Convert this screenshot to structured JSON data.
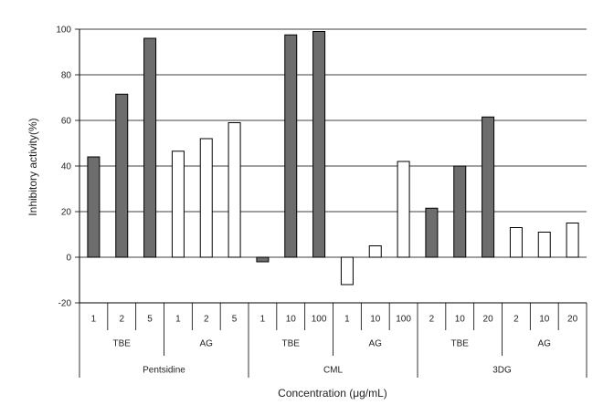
{
  "chart_data": {
    "type": "bar",
    "ylabel": "Inhibitory activity(%)",
    "xlabel": "Concentration (μg/mL)",
    "ylim": [
      -20,
      100
    ],
    "yticks": [
      -20,
      0,
      20,
      40,
      60,
      80,
      100
    ],
    "grid": true,
    "bars": [
      {
        "concentration": "1",
        "group": "TBE",
        "compound": "Pentsidine",
        "value": 44,
        "fill": "dark"
      },
      {
        "concentration": "2",
        "group": "TBE",
        "compound": "Pentsidine",
        "value": 71.5,
        "fill": "dark"
      },
      {
        "concentration": "5",
        "group": "TBE",
        "compound": "Pentsidine",
        "value": 96,
        "fill": "dark"
      },
      {
        "concentration": "1",
        "group": "AG",
        "compound": "Pentsidine",
        "value": 46.5,
        "fill": "white"
      },
      {
        "concentration": "2",
        "group": "AG",
        "compound": "Pentsidine",
        "value": 52,
        "fill": "white"
      },
      {
        "concentration": "5",
        "group": "AG",
        "compound": "Pentsidine",
        "value": 59,
        "fill": "white"
      },
      {
        "concentration": "1",
        "group": "TBE",
        "compound": "CML",
        "value": -2,
        "fill": "dark"
      },
      {
        "concentration": "10",
        "group": "TBE",
        "compound": "CML",
        "value": 97.5,
        "fill": "dark"
      },
      {
        "concentration": "100",
        "group": "TBE",
        "compound": "CML",
        "value": 99,
        "fill": "dark"
      },
      {
        "concentration": "1",
        "group": "AG",
        "compound": "CML",
        "value": -12,
        "fill": "white"
      },
      {
        "concentration": "10",
        "group": "AG",
        "compound": "CML",
        "value": 5,
        "fill": "white"
      },
      {
        "concentration": "100",
        "group": "AG",
        "compound": "CML",
        "value": 42,
        "fill": "white"
      },
      {
        "concentration": "2",
        "group": "TBE",
        "compound": "3DG",
        "value": 21.5,
        "fill": "dark"
      },
      {
        "concentration": "10",
        "group": "TBE",
        "compound": "3DG",
        "value": 40,
        "fill": "dark"
      },
      {
        "concentration": "20",
        "group": "TBE",
        "compound": "3DG",
        "value": 61.5,
        "fill": "dark"
      },
      {
        "concentration": "2",
        "group": "AG",
        "compound": "3DG",
        "value": 13,
        "fill": "white"
      },
      {
        "concentration": "10",
        "group": "AG",
        "compound": "3DG",
        "value": 11,
        "fill": "white"
      },
      {
        "concentration": "20",
        "group": "AG",
        "compound": "3DG",
        "value": 15,
        "fill": "white"
      }
    ],
    "groups": [
      "TBE",
      "AG",
      "TBE",
      "AG",
      "TBE",
      "AG"
    ],
    "compounds": [
      "Pentsidine",
      "CML",
      "3DG"
    ],
    "colors": {
      "dark": "#6d6d6d",
      "white": "#ffffff",
      "stroke": "#000000"
    }
  }
}
